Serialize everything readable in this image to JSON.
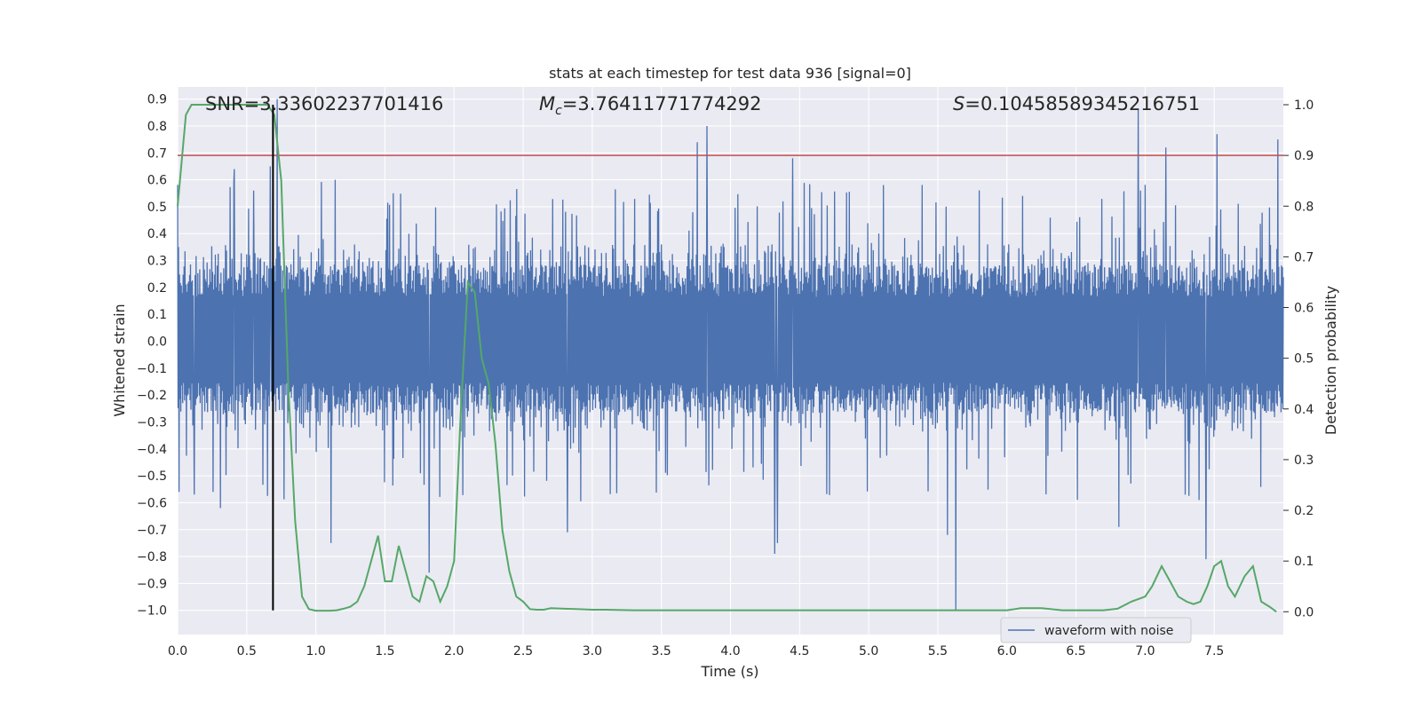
{
  "chart_data": {
    "type": "line",
    "title": "stats at each timestep for test data 936 [signal=0]",
    "xlabel": "Time (s)",
    "ylabel": "Whitened strain",
    "y2label": "Detection probability",
    "xlim": [
      0.0,
      8.0
    ],
    "ylim": [
      -1.09,
      0.945
    ],
    "y2lim": [
      -0.045,
      1.035
    ],
    "x_ticks": [
      "0.0",
      "0.5",
      "1.0",
      "1.5",
      "2.0",
      "2.5",
      "3.0",
      "3.5",
      "4.0",
      "4.5",
      "5.0",
      "5.5",
      "6.0",
      "6.5",
      "7.0",
      "7.5"
    ],
    "x_tick_values": [
      0.0,
      0.5,
      1.0,
      1.5,
      2.0,
      2.5,
      3.0,
      3.5,
      4.0,
      4.5,
      5.0,
      5.5,
      6.0,
      6.5,
      7.0,
      7.5
    ],
    "y_ticks": [
      "0.9",
      "0.8",
      "0.7",
      "0.6",
      "0.5",
      "0.4",
      "0.3",
      "0.2",
      "0.1",
      "0.0",
      "−0.1",
      "−0.2",
      "−0.3",
      "−0.4",
      "−0.5",
      "−0.6",
      "−0.7",
      "−0.8",
      "−0.9",
      "−1.0"
    ],
    "y_tick_values": [
      0.9,
      0.8,
      0.7,
      0.6,
      0.5,
      0.4,
      0.3,
      0.2,
      0.1,
      0.0,
      -0.1,
      -0.2,
      -0.3,
      -0.4,
      -0.5,
      -0.6,
      -0.7,
      -0.8,
      -0.9,
      -1.0
    ],
    "y2_ticks": [
      "1.0",
      "0.9",
      "0.8",
      "0.7",
      "0.6",
      "0.5",
      "0.4",
      "0.3",
      "0.2",
      "0.1",
      "0.0"
    ],
    "y2_tick_values": [
      1.0,
      0.9,
      0.8,
      0.7,
      0.6,
      0.5,
      0.4,
      0.3,
      0.2,
      0.1,
      0.0
    ],
    "grid": true,
    "legend_position": "bottom-right",
    "annotations": {
      "snr": "SNR=3.33602237701416",
      "mc_symbol": "M",
      "mc_sub": "c",
      "mc_value": "=3.76411771774292",
      "s_symbol": "S",
      "s_value": "=0.10458589345216751"
    },
    "threshold_line": {
      "y2": 0.9,
      "color": "#c44e52"
    },
    "vertical_marker": {
      "x": 0.69,
      "color": "#000000"
    },
    "series": [
      {
        "name": "waveform with noise",
        "color": "#4c72b0",
        "axis": "left",
        "style": "noise",
        "typical_envelope": [
          -0.28,
          0.3
        ],
        "spikes": [
          {
            "x": 0.41,
            "y": 0.64
          },
          {
            "x": 0.55,
            "y": 0.56
          },
          {
            "x": 0.67,
            "y": 0.65
          },
          {
            "x": 0.72,
            "y": 0.9
          },
          {
            "x": 1.14,
            "y": 0.6
          },
          {
            "x": 1.56,
            "y": 0.55
          },
          {
            "x": 3.76,
            "y": 0.74
          },
          {
            "x": 3.83,
            "y": 0.8
          },
          {
            "x": 4.45,
            "y": 0.68
          },
          {
            "x": 6.95,
            "y": 0.86
          },
          {
            "x": 7.15,
            "y": 0.72
          },
          {
            "x": 7.52,
            "y": 0.77
          },
          {
            "x": 7.96,
            "y": 0.75
          },
          {
            "x": 0.01,
            "y": -0.56
          },
          {
            "x": 0.31,
            "y": -0.62
          },
          {
            "x": 0.12,
            "y": -0.57
          },
          {
            "x": 1.11,
            "y": -0.75
          },
          {
            "x": 1.82,
            "y": -0.86
          },
          {
            "x": 2.82,
            "y": -0.71
          },
          {
            "x": 4.32,
            "y": -0.79
          },
          {
            "x": 4.34,
            "y": -0.75
          },
          {
            "x": 5.57,
            "y": -0.72
          },
          {
            "x": 5.63,
            "y": -1.0
          },
          {
            "x": 6.81,
            "y": -0.69
          },
          {
            "x": 7.44,
            "y": -0.81
          },
          {
            "x": 7.39,
            "y": -0.59
          }
        ]
      },
      {
        "name": "",
        "color": "#55a868",
        "axis": "right",
        "x": [
          0.0,
          0.06,
          0.1,
          0.15,
          0.2,
          0.3,
          0.4,
          0.5,
          0.6,
          0.65,
          0.7,
          0.75,
          0.8,
          0.85,
          0.9,
          0.95,
          1.0,
          1.05,
          1.1,
          1.15,
          1.2,
          1.25,
          1.3,
          1.35,
          1.4,
          1.45,
          1.5,
          1.55,
          1.6,
          1.65,
          1.7,
          1.75,
          1.8,
          1.85,
          1.9,
          1.95,
          2.0,
          2.05,
          2.1,
          2.15,
          2.2,
          2.25,
          2.3,
          2.35,
          2.4,
          2.45,
          2.5,
          2.55,
          2.6,
          2.65,
          2.7,
          2.8,
          2.9,
          3.0,
          3.1,
          3.3,
          3.5,
          4.0,
          4.5,
          5.0,
          5.5,
          6.0,
          6.1,
          6.25,
          6.4,
          6.7,
          6.8,
          6.9,
          7.0,
          7.05,
          7.12,
          7.18,
          7.24,
          7.3,
          7.35,
          7.4,
          7.45,
          7.5,
          7.55,
          7.6,
          7.65,
          7.72,
          7.78,
          7.84,
          7.9,
          7.95
        ],
        "values": [
          0.8,
          0.98,
          1.0,
          1.0,
          1.0,
          1.0,
          1.0,
          1.0,
          1.0,
          1.0,
          0.98,
          0.85,
          0.45,
          0.18,
          0.03,
          0.005,
          0.002,
          0.002,
          0.002,
          0.003,
          0.006,
          0.01,
          0.02,
          0.05,
          0.1,
          0.15,
          0.06,
          0.06,
          0.13,
          0.08,
          0.03,
          0.02,
          0.07,
          0.06,
          0.02,
          0.05,
          0.1,
          0.4,
          0.65,
          0.63,
          0.5,
          0.45,
          0.33,
          0.16,
          0.08,
          0.03,
          0.02,
          0.005,
          0.004,
          0.004,
          0.007,
          0.006,
          0.005,
          0.004,
          0.004,
          0.003,
          0.003,
          0.003,
          0.003,
          0.003,
          0.003,
          0.003,
          0.007,
          0.007,
          0.003,
          0.003,
          0.006,
          0.02,
          0.03,
          0.05,
          0.09,
          0.06,
          0.03,
          0.02,
          0.015,
          0.02,
          0.05,
          0.09,
          0.1,
          0.05,
          0.03,
          0.07,
          0.09,
          0.02,
          0.01,
          0.0
        ]
      }
    ]
  }
}
